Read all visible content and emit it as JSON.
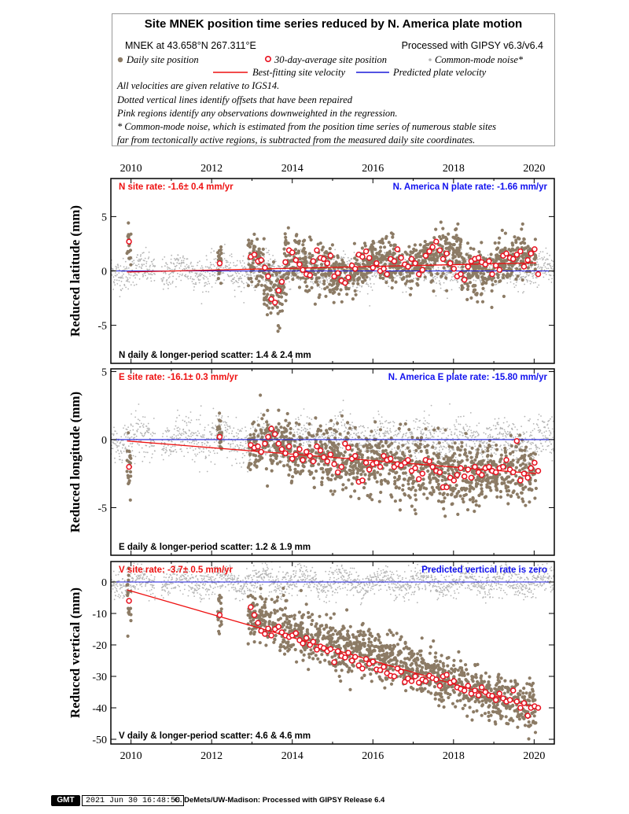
{
  "header": {
    "title": "Site MNEK position time series reduced by N. America plate motion",
    "location": "MNEK at 43.658°N 267.311°E",
    "processed": "Processed with GIPSY v6.3/v6.4",
    "legend": {
      "daily": "Daily site position",
      "avg30": "30-day-average site position",
      "cmn": "Common-mode noise*",
      "best": "Best-fitting site velocity",
      "pred": "Predicted plate velocity"
    },
    "notes": [
      "All velocities are given relative to IGS14.",
      "Dotted vertical lines identify offsets that have been repaired",
      "Pink regions identify any observations downweighted in the regression.",
      "* Common-mode noise, which is estimated from the position time series of numerous stable sites",
      "far from tectonically active regions, is subtracted from the measured daily site coordinates."
    ]
  },
  "colors": {
    "daily": "#8c7b65",
    "avg_ring": "#e8101e",
    "cmn": "#b4b4b4",
    "best_fit": "#ee1111",
    "predicted": "#1a1ad8",
    "rate_text": "#ee1111",
    "plate_text": "#1111ee"
  },
  "chart_data": [
    {
      "type": "scatter",
      "ylabel": "Reduced latitude (mm)",
      "xlim": [
        2009.5,
        2020.5
      ],
      "ylim": [
        -8.5,
        8.5
      ],
      "xticks": [
        2010,
        2012,
        2014,
        2016,
        2018,
        2020
      ],
      "yticks": [
        5,
        0,
        -5
      ],
      "site_rate_text": "N site rate:  -1.6± 0.4 mm/yr",
      "plate_rate_text": "N. America N plate rate: -1.66 mm/yr",
      "scatter_text": "N daily & longer-period scatter:   1.4 &   2.4 mm",
      "predicted_value": 0,
      "best_fit": {
        "x": [
          2009.9,
          2020.05
        ],
        "y": [
          -0.1,
          0.75
        ]
      },
      "daily_segments": [
        {
          "x": [
            2009.9,
            2010.0
          ],
          "y": [
            2.8,
            2.8
          ],
          "sd": 1.0
        },
        {
          "x": [
            2012.15,
            2012.25
          ],
          "y": [
            0.7,
            0.7
          ],
          "sd": 0.7
        },
        {
          "x": [
            2012.9,
            2013.3
          ],
          "y": [
            1.2,
            0.6
          ],
          "sd": 1.1
        },
        {
          "x": [
            2013.3,
            2013.8
          ],
          "y": [
            -2.0,
            -2.2
          ],
          "sd": 1.3
        },
        {
          "x": [
            2013.8,
            2015.0
          ],
          "y": [
            1.3,
            0.0
          ],
          "sd": 1.2
        },
        {
          "x": [
            2015.0,
            2015.9
          ],
          "y": [
            -0.5,
            0.0
          ],
          "sd": 1.0
        },
        {
          "x": [
            2015.9,
            2017.0
          ],
          "y": [
            1.2,
            0.3
          ],
          "sd": 1.1
        },
        {
          "x": [
            2017.0,
            2018.2
          ],
          "y": [
            0.6,
            1.9
          ],
          "sd": 1.0
        },
        {
          "x": [
            2018.2,
            2019.0
          ],
          "y": [
            0.4,
            -0.5
          ],
          "sd": 1.1
        },
        {
          "x": [
            2019.0,
            2020.05
          ],
          "y": [
            0.8,
            1.8
          ],
          "sd": 1.0
        }
      ],
      "avg30": {
        "x": [
          2009.95,
          2012.2,
          2012.97,
          2013.06,
          2013.15,
          2013.23,
          2013.32,
          2013.4,
          2013.48,
          2013.57,
          2013.66,
          2013.74,
          2013.83,
          2013.92,
          2014.0,
          2014.09,
          2014.18,
          2014.26,
          2014.35,
          2014.44,
          2014.52,
          2014.61,
          2014.7,
          2014.78,
          2014.87,
          2014.95,
          2015.04,
          2015.13,
          2015.22,
          2015.31,
          2015.39,
          2015.48,
          2015.56,
          2015.65,
          2015.74,
          2015.83,
          2015.91,
          2016.0,
          2016.09,
          2016.18,
          2016.27,
          2016.35,
          2016.44,
          2016.53,
          2016.61,
          2016.7,
          2016.79,
          2016.87,
          2016.96,
          2017.05,
          2017.14,
          2017.23,
          2017.31,
          2017.4,
          2017.48,
          2017.57,
          2017.66,
          2017.74,
          2017.83,
          2017.92,
          2018.01,
          2018.09,
          2018.18,
          2018.27,
          2018.36,
          2018.44,
          2018.53,
          2018.62,
          2018.7,
          2018.79,
          2018.88,
          2018.96,
          2019.05,
          2019.14,
          2019.23,
          2019.31,
          2019.4,
          2019.48,
          2019.57,
          2019.66,
          2019.75,
          2019.84,
          2019.92,
          2020.01,
          2020.1
        ],
        "y": [
          2.7,
          0.7,
          1.3,
          1.5,
          0.9,
          1.0,
          0.3,
          -0.5,
          -2.6,
          -2.9,
          -1.8,
          -1.0,
          0.8,
          1.9,
          1.7,
          1.0,
          0.6,
          0.1,
          -0.3,
          -0.4,
          0.9,
          1.9,
          1.2,
          1.1,
          0.7,
          1.4,
          -0.5,
          -0.2,
          -0.9,
          -1.1,
          -0.6,
          0.5,
          0.2,
          1.5,
          1.3,
          1.8,
          1.2,
          0.3,
          0.7,
          0.0,
          0.2,
          -0.3,
          1.1,
          0.9,
          2.0,
          1.2,
          0.6,
          0.4,
          1.1,
          0.7,
          -0.3,
          0.1,
          1.4,
          1.8,
          2.2,
          2.7,
          1.9,
          1.1,
          1.6,
          0.7,
          0.2,
          -0.5,
          -0.3,
          -0.8,
          0.4,
          0.9,
          1.1,
          1.2,
          0.8,
          0.6,
          0.9,
          -0.3,
          0.5,
          0.1,
          1.4,
          1.6,
          1.2,
          1.1,
          1.5,
          1.8,
          0.4,
          1.0,
          1.6,
          2.0,
          -0.3
        ]
      }
    },
    {
      "type": "scatter",
      "ylabel": "Reduced longitude (mm)",
      "xlim": [
        2009.5,
        2020.5
      ],
      "ylim": [
        -8.5,
        5.2
      ],
      "xticks": [
        2010,
        2012,
        2014,
        2016,
        2018,
        2020
      ],
      "yticks": [
        5,
        0,
        -5
      ],
      "site_rate_text": "E site rate: -16.1± 0.3 mm/yr",
      "plate_rate_text": "N. America E plate rate: -15.80 mm/yr",
      "scatter_text": "E daily & longer-period scatter:   1.2 &   1.9 mm",
      "predicted_value": 0,
      "best_fit": {
        "x": [
          2009.9,
          2020.05
        ],
        "y": [
          -0.1,
          -2.5
        ]
      },
      "daily_segments": [
        {
          "x": [
            2009.9,
            2010.0
          ],
          "y": [
            -2.0,
            -2.0
          ],
          "sd": 1.2
        },
        {
          "x": [
            2012.15,
            2012.25
          ],
          "y": [
            0.2,
            0.2
          ],
          "sd": 0.7
        },
        {
          "x": [
            2012.9,
            2013.9
          ],
          "y": [
            -0.4,
            -0.3
          ],
          "sd": 1.1
        },
        {
          "x": [
            2013.9,
            2016.0
          ],
          "y": [
            -0.9,
            -1.9
          ],
          "sd": 1.1
        },
        {
          "x": [
            2016.0,
            2018.0
          ],
          "y": [
            -1.5,
            -2.7
          ],
          "sd": 1.2
        },
        {
          "x": [
            2018.0,
            2020.05
          ],
          "y": [
            -2.7,
            -2.3
          ],
          "sd": 1.1
        }
      ],
      "avg30": {
        "x": [
          2009.95,
          2012.2,
          2012.97,
          2013.06,
          2013.15,
          2013.23,
          2013.32,
          2013.4,
          2013.48,
          2013.57,
          2013.66,
          2013.74,
          2013.83,
          2013.92,
          2014.0,
          2014.09,
          2014.18,
          2014.26,
          2014.35,
          2014.44,
          2014.52,
          2014.61,
          2014.7,
          2014.78,
          2014.87,
          2014.95,
          2015.04,
          2015.13,
          2015.22,
          2015.31,
          2015.39,
          2015.48,
          2015.56,
          2015.65,
          2015.74,
          2015.83,
          2015.91,
          2016.0,
          2016.09,
          2016.18,
          2016.27,
          2016.35,
          2016.44,
          2016.53,
          2016.61,
          2016.7,
          2016.79,
          2016.87,
          2016.96,
          2017.05,
          2017.14,
          2017.23,
          2017.31,
          2017.4,
          2017.48,
          2017.57,
          2017.66,
          2017.74,
          2017.83,
          2017.92,
          2018.01,
          2018.09,
          2018.18,
          2018.27,
          2018.36,
          2018.44,
          2018.53,
          2018.62,
          2018.7,
          2018.79,
          2018.88,
          2018.96,
          2019.05,
          2019.14,
          2019.23,
          2019.31,
          2019.4,
          2019.48,
          2019.57,
          2019.66,
          2019.75,
          2019.84,
          2019.92,
          2020.01,
          2020.1
        ],
        "y": [
          -2.0,
          0.2,
          -0.4,
          -0.6,
          -0.5,
          -0.9,
          -0.3,
          0.2,
          0.8,
          0.4,
          -0.3,
          -0.7,
          -1.0,
          -0.5,
          -1.4,
          -1.1,
          -0.7,
          -1.5,
          -0.9,
          -1.2,
          -1.6,
          -0.5,
          -0.8,
          -1.3,
          -1.6,
          -1.1,
          -1.8,
          -2.4,
          -2.0,
          -0.3,
          -0.6,
          -1.4,
          -1.2,
          -3.1,
          -3.0,
          -1.7,
          -2.2,
          -1.8,
          -1.7,
          -2.0,
          -1.2,
          -1.5,
          -1.4,
          -2.0,
          -1.8,
          -1.9,
          -1.7,
          -1.5,
          -2.3,
          -2.1,
          -2.9,
          -2.5,
          -1.5,
          -1.6,
          -2.0,
          -2.3,
          -2.4,
          -3.5,
          -3.5,
          -2.8,
          -3.0,
          -2.6,
          -2.1,
          -2.7,
          -2.2,
          -2.8,
          -2.0,
          -2.4,
          -2.6,
          -2.1,
          -2.0,
          -2.3,
          -2.4,
          -2.1,
          -2.0,
          -1.5,
          -2.2,
          -2.4,
          -0.1,
          -3.0,
          -2.5,
          -2.8,
          -2.1,
          -1.7,
          -2.3
        ]
      }
    },
    {
      "type": "scatter",
      "ylabel": "Reduced vertical (mm)",
      "xlim": [
        2009.5,
        2020.5
      ],
      "ylim": [
        -51.5,
        6.5
      ],
      "xticks": [
        2010,
        2012,
        2014,
        2016,
        2018,
        2020
      ],
      "yticks": [
        0,
        -10,
        -20,
        -30,
        -40,
        -50
      ],
      "site_rate_text": "V site rate:  -3.7± 0.5 mm/yr",
      "plate_rate_text": "Predicted vertical rate is zero",
      "scatter_text": "V daily & longer-period scatter:   4.6 &   4.6 mm",
      "predicted_value": 0,
      "best_fit": {
        "x": [
          2009.9,
          2020.05
        ],
        "y": [
          -2.5,
          -40.0
        ]
      },
      "daily_segments": [
        {
          "x": [
            2009.9,
            2010.0
          ],
          "y": [
            -6.0,
            -6.0
          ],
          "sd": 5.0
        },
        {
          "x": [
            2012.15,
            2012.25
          ],
          "y": [
            -10.5,
            -10.5
          ],
          "sd": 3.0
        },
        {
          "x": [
            2012.9,
            2020.05
          ],
          "y": [
            -11.0,
            -40.0
          ],
          "sd": 3.8
        }
      ],
      "avg30": {
        "x": [
          2009.95,
          2012.2,
          2012.97,
          2013.06,
          2013.15,
          2013.23,
          2013.32,
          2013.4,
          2013.48,
          2013.57,
          2013.66,
          2013.74,
          2013.83,
          2013.92,
          2014.0,
          2014.09,
          2014.18,
          2014.26,
          2014.35,
          2014.44,
          2014.52,
          2014.61,
          2014.7,
          2014.78,
          2014.87,
          2014.95,
          2015.04,
          2015.13,
          2015.22,
          2015.31,
          2015.39,
          2015.48,
          2015.56,
          2015.65,
          2015.74,
          2015.83,
          2015.91,
          2016.0,
          2016.09,
          2016.18,
          2016.27,
          2016.35,
          2016.44,
          2016.53,
          2016.61,
          2016.7,
          2016.79,
          2016.87,
          2016.96,
          2017.05,
          2017.14,
          2017.23,
          2017.31,
          2017.4,
          2017.48,
          2017.57,
          2017.66,
          2017.74,
          2017.83,
          2017.92,
          2018.01,
          2018.09,
          2018.18,
          2018.27,
          2018.36,
          2018.44,
          2018.53,
          2018.62,
          2018.7,
          2018.79,
          2018.88,
          2018.96,
          2019.05,
          2019.14,
          2019.23,
          2019.31,
          2019.4,
          2019.48,
          2019.57,
          2019.66,
          2019.75,
          2019.84,
          2019.92,
          2020.01,
          2020.1
        ],
        "y": [
          -6.0,
          -10.5,
          -8.0,
          -10.5,
          -13.0,
          -15.5,
          -16.5,
          -14.8,
          -17.0,
          -15.0,
          -14.2,
          -16.0,
          -17.0,
          -17.5,
          -17.0,
          -16.3,
          -18.5,
          -19.5,
          -17.8,
          -20.0,
          -19.0,
          -21.5,
          -20.5,
          -21.0,
          -22.0,
          -21.3,
          -25.5,
          -22.0,
          -23.5,
          -24.0,
          -22.5,
          -25.0,
          -23.8,
          -26.5,
          -27.5,
          -24.5,
          -26.0,
          -25.3,
          -27.8,
          -28.0,
          -27.0,
          -29.0,
          -29.8,
          -30.0,
          -27.5,
          -28.5,
          -31.8,
          -30.7,
          -31.5,
          -30.0,
          -32.0,
          -31.0,
          -31.5,
          -29.8,
          -30.5,
          -31.0,
          -33.0,
          -30.0,
          -29.5,
          -32.0,
          -31.5,
          -33.5,
          -34.0,
          -34.5,
          -33.0,
          -35.5,
          -34.5,
          -36.0,
          -33.5,
          -35.0,
          -36.0,
          -36.2,
          -37.5,
          -35.5,
          -37.0,
          -38.0,
          -37.5,
          -34.5,
          -38.0,
          -40.0,
          -38.5,
          -42.5,
          -40.0,
          -39.5,
          -40.0
        ]
      }
    }
  ],
  "footer": {
    "logo_text": "GMT",
    "timestamp": "2021 Jun 30 16:48:50",
    "credit": "C. DeMets/UW-Madison: Processed with GIPSY Release 6.4"
  }
}
